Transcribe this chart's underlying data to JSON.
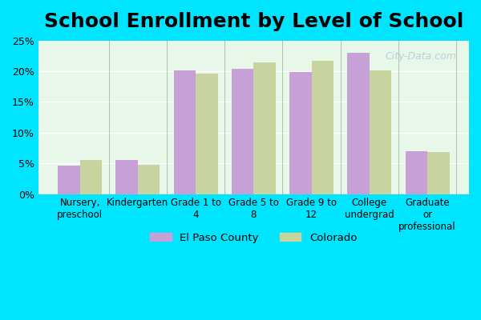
{
  "title": "School Enrollment by Level of School",
  "categories": [
    "Nursery,\npreschool",
    "Kindergarten",
    "Grade 1 to\n4",
    "Grade 5 to\n8",
    "Grade 9 to\n12",
    "College\nundergrad",
    "Graduate\nor\nprofessional"
  ],
  "el_paso_values": [
    4.6,
    5.6,
    20.1,
    20.4,
    19.9,
    23.0,
    7.0
  ],
  "colorado_values": [
    5.6,
    4.8,
    19.6,
    21.5,
    21.7,
    20.2,
    6.9
  ],
  "el_paso_color": "#c8a0d8",
  "colorado_color": "#c8d4a0",
  "background_color": "#e8f8e8",
  "outer_background": "#00e5ff",
  "ylim": [
    0,
    25
  ],
  "yticks": [
    0,
    5,
    10,
    15,
    20,
    25
  ],
  "ytick_labels": [
    "0%",
    "5%",
    "10%",
    "15%",
    "20%",
    "25%"
  ],
  "legend_labels": [
    "El Paso County",
    "Colorado"
  ],
  "title_fontsize": 18,
  "bar_width": 0.38,
  "watermark": "City-Data.com"
}
